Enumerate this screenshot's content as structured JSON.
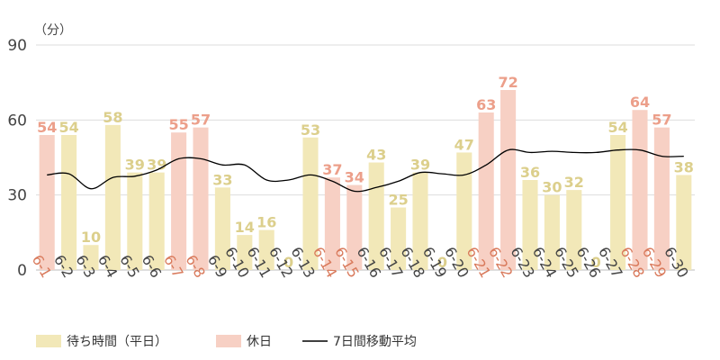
{
  "chart_data": {
    "type": "bar",
    "unit_label": "（分）",
    "ylim": [
      0,
      90
    ],
    "yticks": [
      0,
      30,
      60,
      90
    ],
    "grid": true,
    "legend_position": "bottom-left",
    "categories": [
      "6-1",
      "6-2",
      "6-3",
      "6-4",
      "6-5",
      "6-6",
      "6-7",
      "6-8",
      "6-9",
      "6-10",
      "6-11",
      "6-12",
      "6-13",
      "6-14",
      "6-15",
      "6-16",
      "6-17",
      "6-18",
      "6-19",
      "6-20",
      "6-21",
      "6-22",
      "6-23",
      "6-24",
      "6-25",
      "6-26",
      "6-27",
      "6-28",
      "6-29",
      "6-30"
    ],
    "values": [
      54,
      54,
      10,
      58,
      39,
      39,
      55,
      57,
      33,
      14,
      16,
      0,
      53,
      37,
      34,
      43,
      25,
      39,
      0,
      47,
      63,
      72,
      36,
      30,
      32,
      0,
      54,
      64,
      57,
      38
    ],
    "holiday": [
      true,
      false,
      false,
      false,
      false,
      false,
      true,
      true,
      false,
      false,
      false,
      false,
      false,
      true,
      true,
      false,
      false,
      false,
      false,
      false,
      true,
      true,
      false,
      false,
      false,
      false,
      false,
      true,
      true,
      false
    ],
    "moving_average": [
      38,
      38.5,
      32.5,
      37,
      37.5,
      40,
      44.5,
      44.5,
      42,
      42,
      36,
      36,
      38,
      35.5,
      31.5,
      33,
      35.5,
      39,
      38.5,
      38,
      42,
      48,
      47,
      47.5,
      47,
      47,
      48,
      48,
      45.5,
      45.5
    ],
    "series": [
      {
        "name": "待ち時間（平日）",
        "color": "#f2e8b8"
      },
      {
        "name": "休日",
        "color": "#f7d0c4"
      },
      {
        "name": "7日間移動平均",
        "color": "#000000"
      }
    ],
    "colors": {
      "weekday_bar": "#f2e8b8",
      "holiday_bar": "#f7d0c4",
      "weekday_label": "#dccf8c",
      "holiday_label": "#ec9f8a",
      "weekday_tick": "#444444",
      "holiday_tick": "#d97a5c",
      "grid": "#dddddd",
      "axis_text": "#444444"
    }
  }
}
